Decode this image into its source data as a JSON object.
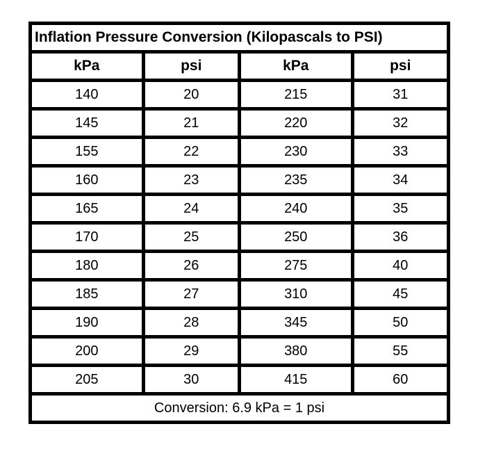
{
  "table": {
    "title": "Inflation Pressure Conversion (Kilopascals to PSI)",
    "headers": [
      "kPa",
      "psi",
      "kPa",
      "psi"
    ],
    "rows": [
      [
        "140",
        "20",
        "215",
        "31"
      ],
      [
        "145",
        "21",
        "220",
        "32"
      ],
      [
        "155",
        "22",
        "230",
        "33"
      ],
      [
        "160",
        "23",
        "235",
        "34"
      ],
      [
        "165",
        "24",
        "240",
        "35"
      ],
      [
        "170",
        "25",
        "250",
        "36"
      ],
      [
        "180",
        "26",
        "275",
        "40"
      ],
      [
        "185",
        "27",
        "310",
        "45"
      ],
      [
        "190",
        "28",
        "345",
        "50"
      ],
      [
        "200",
        "29",
        "380",
        "55"
      ],
      [
        "205",
        "30",
        "415",
        "60"
      ]
    ],
    "footer_note": "Conversion: 6.9 kPa = 1 psi"
  },
  "colors": {
    "border": "#000000",
    "background": "#ffffff",
    "text": "#000000"
  }
}
